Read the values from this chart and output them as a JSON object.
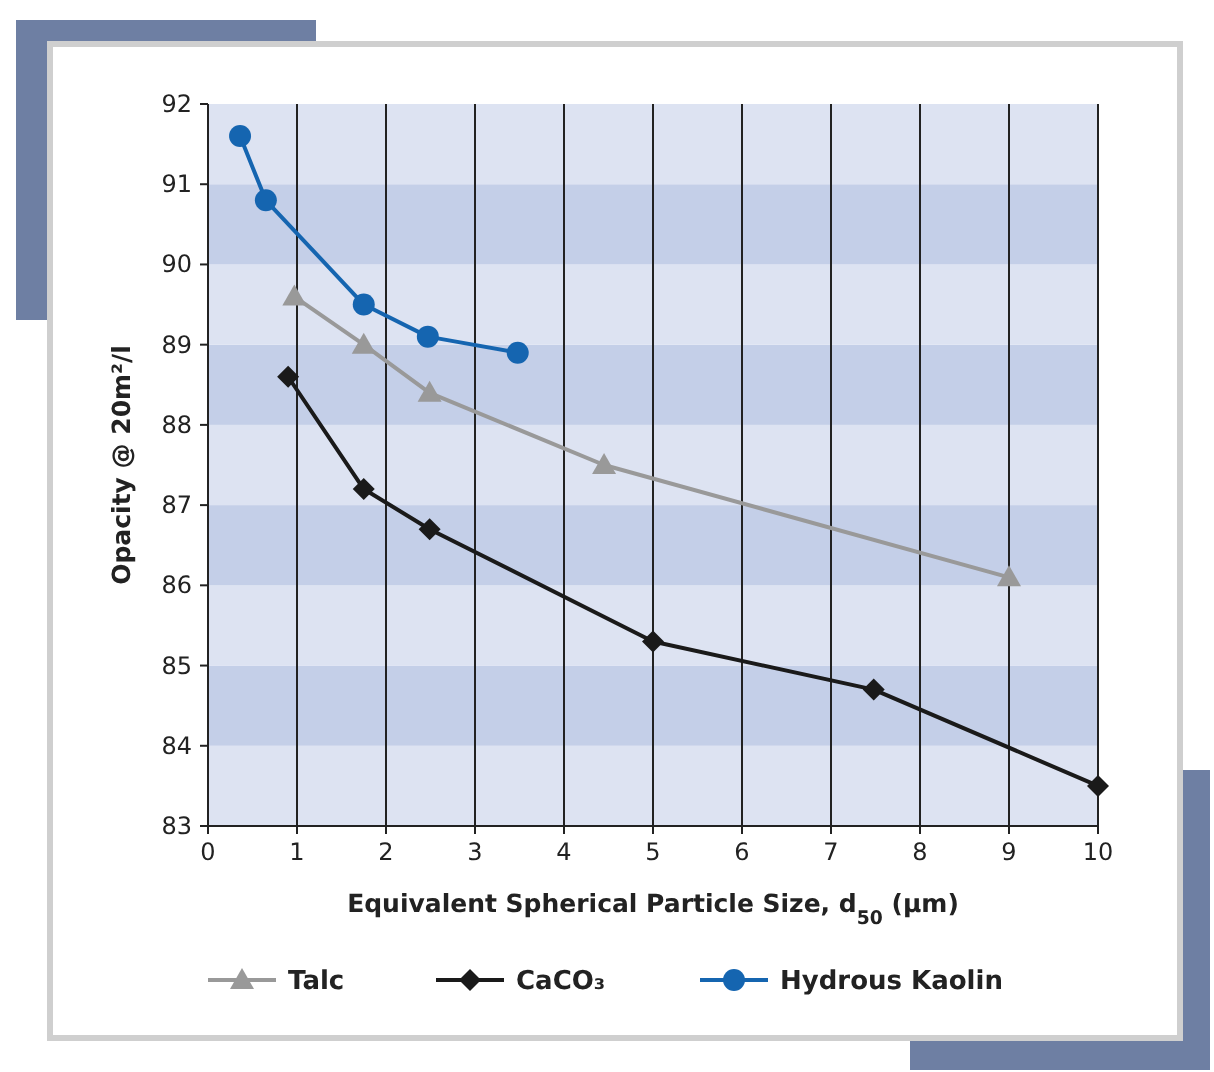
{
  "chart_data": {
    "type": "line",
    "xlabel": "Equivalent Spherical Particle Size, d$_{50}$ (µm)",
    "ylabel": "Opacity @ 20m²/l",
    "xlim": [
      0,
      10
    ],
    "xticks": [
      0,
      1,
      2,
      3,
      4,
      5,
      6,
      7,
      8,
      9,
      10
    ],
    "ylim": [
      83,
      92
    ],
    "yticks": [
      83,
      84,
      85,
      86,
      87,
      88,
      89,
      90,
      91,
      92
    ],
    "grid": "x",
    "legend": "bottom",
    "series": [
      {
        "name": "Talc",
        "color": "#999999",
        "marker": "triangle",
        "x": [
          0.97,
          1.75,
          2.49,
          4.45,
          9.0
        ],
        "values": [
          89.6,
          89.0,
          88.4,
          87.5,
          86.1
        ]
      },
      {
        "name": "CaCO₃",
        "color": "#1a1a1a",
        "marker": "diamond",
        "x": [
          0.9,
          1.75,
          2.49,
          5.0,
          7.48,
          10
        ],
        "values": [
          88.6,
          87.2,
          86.7,
          85.3,
          84.7,
          83.5
        ]
      },
      {
        "name": "Hydrous Kaolin",
        "color": "#1565b0",
        "marker": "circle",
        "x": [
          0.36,
          0.65,
          1.75,
          2.47,
          3.48
        ],
        "values": [
          91.6,
          90.8,
          89.5,
          89.1,
          88.9
        ]
      }
    ]
  }
}
